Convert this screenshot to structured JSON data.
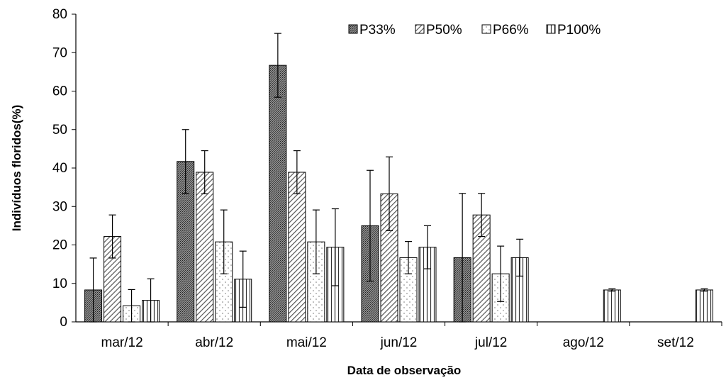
{
  "chart_data": {
    "type": "bar",
    "xlabel": "Data de observação",
    "ylabel": "Indivíduos floridos(%)",
    "ylim": [
      0,
      80
    ],
    "yticks": [
      0,
      10,
      20,
      30,
      40,
      50,
      60,
      70,
      80
    ],
    "categories": [
      "mar/12",
      "abr/12",
      "mai/12",
      "jun/12",
      "jul/12",
      "ago/12",
      "set/12"
    ],
    "series": [
      {
        "name": "P33%",
        "pattern": "crosshatch-dark",
        "values": [
          8.3,
          41.7,
          66.7,
          25.0,
          16.7,
          0,
          0
        ],
        "errors": [
          8.3,
          8.3,
          8.3,
          14.4,
          16.7,
          0,
          0
        ]
      },
      {
        "name": "P50%",
        "pattern": "diagonal",
        "values": [
          22.2,
          38.9,
          38.9,
          33.3,
          27.8,
          0,
          0
        ],
        "errors": [
          5.6,
          5.6,
          5.6,
          9.6,
          5.6,
          0,
          0
        ]
      },
      {
        "name": "P66%",
        "pattern": "dots",
        "values": [
          4.2,
          20.8,
          20.8,
          16.7,
          12.5,
          0,
          0
        ],
        "errors": [
          4.2,
          8.3,
          8.3,
          4.2,
          7.2,
          0,
          0
        ]
      },
      {
        "name": "P100%",
        "pattern": "vertical",
        "values": [
          5.6,
          11.1,
          19.4,
          19.4,
          16.7,
          8.3,
          8.3
        ],
        "errors": [
          5.6,
          7.3,
          10.0,
          5.6,
          4.8,
          0.3,
          0.3
        ]
      }
    ],
    "legend_position": "top-right",
    "grid": false
  }
}
